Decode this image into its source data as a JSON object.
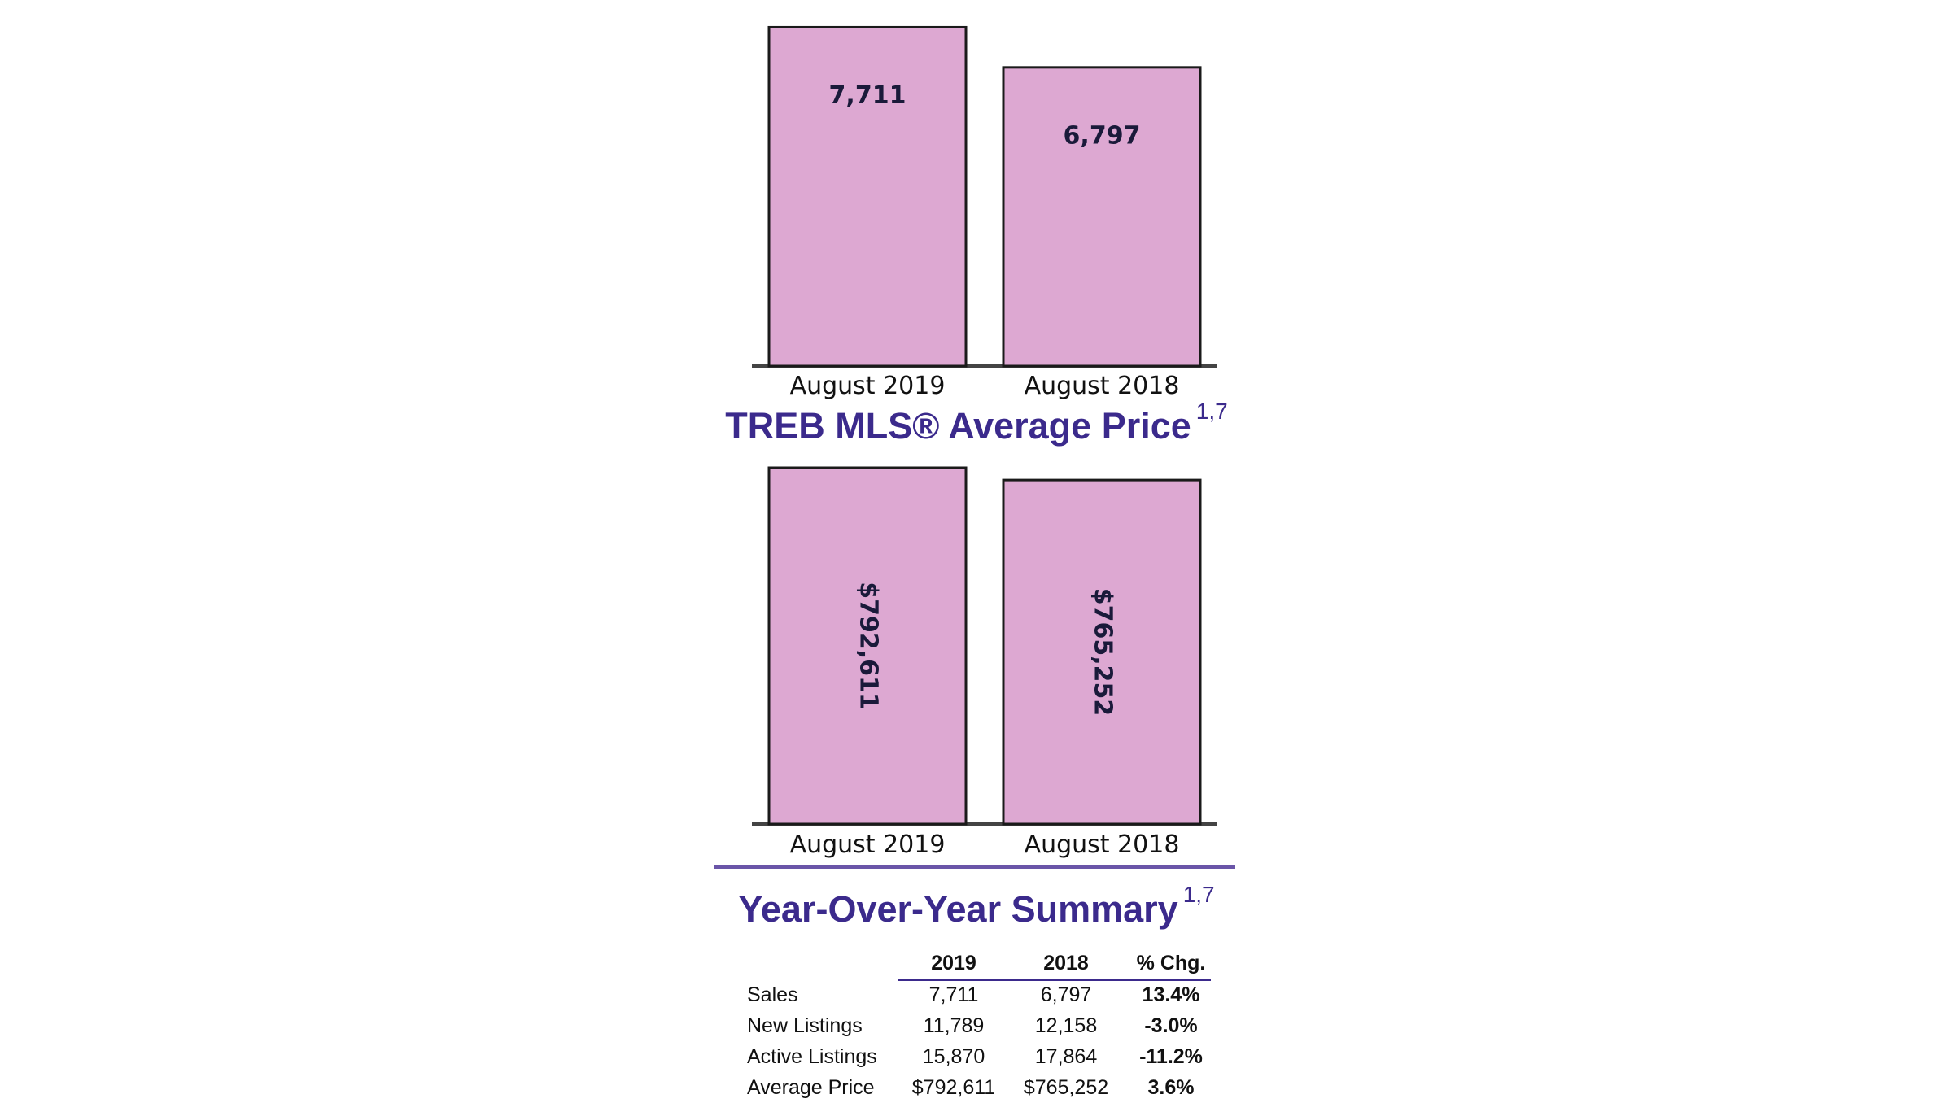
{
  "chart_data": [
    {
      "type": "bar",
      "title": "",
      "categories": [
        "August 2019",
        "August 2018"
      ],
      "values": [
        7711,
        6797
      ],
      "value_labels": [
        "7,711",
        "6,797"
      ],
      "ylim": [
        0,
        7960
      ],
      "label_orientation": "horizontal",
      "bar_color": "#dda8d2"
    },
    {
      "type": "bar",
      "title": "TREB MLS® Average Price",
      "title_superscript": "1,7",
      "categories": [
        "August 2019",
        "August 2018"
      ],
      "values": [
        792611,
        765252
      ],
      "value_labels": [
        "$792,611",
        "$765,252"
      ],
      "ylim": [
        0,
        792611
      ],
      "label_orientation": "vertical",
      "bar_color": "#dda8d2"
    }
  ],
  "summary": {
    "title": "Year-Over-Year Summary",
    "title_superscript": "1,7",
    "headers": [
      "",
      "2019",
      "2018",
      "% Chg."
    ],
    "rows": [
      [
        "Sales",
        "7,711",
        "6,797",
        "13.4%"
      ],
      [
        "New Listings",
        "11,789",
        "12,158",
        "-3.0%"
      ],
      [
        "Active Listings",
        "15,870",
        "17,864",
        "-11.2%"
      ],
      [
        "Average Price",
        "$792,611",
        "$765,252",
        "3.6%"
      ]
    ]
  },
  "colors": {
    "title": "#3b2a8c",
    "bar": "#dda8d2"
  }
}
